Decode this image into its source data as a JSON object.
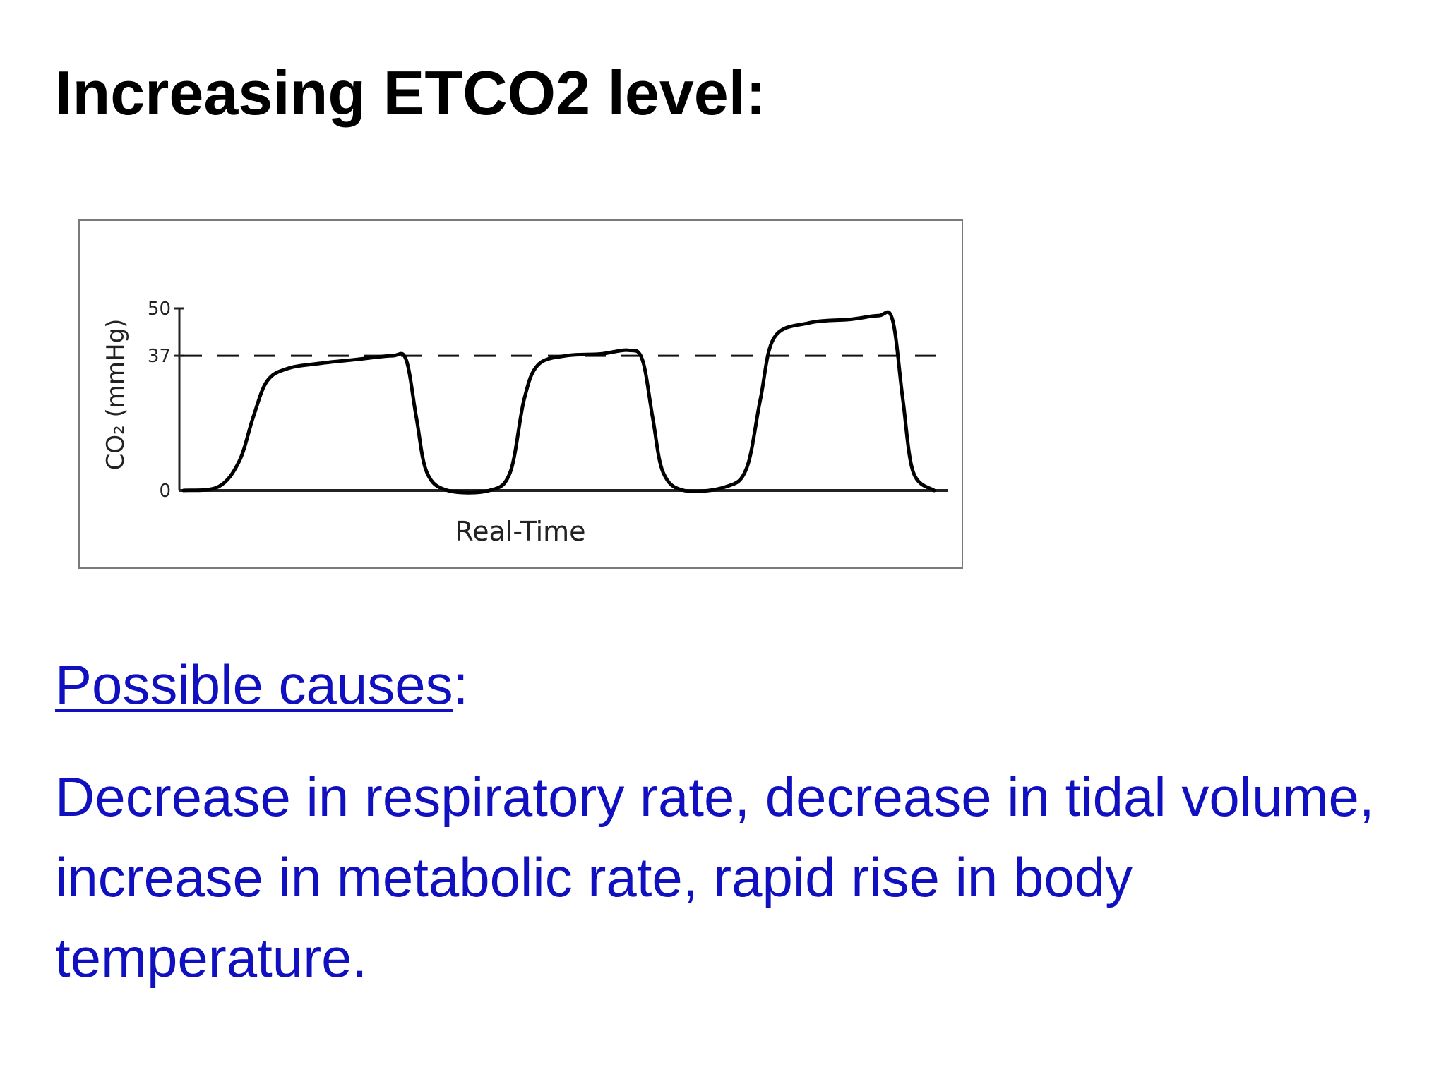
{
  "title": "Increasing ETCO2 level:",
  "chart_data": {
    "type": "line",
    "ylabel": "CO₂ (mmHg)",
    "xlabel": "Real-Time",
    "y_ticks": [
      "0",
      "37",
      "50"
    ],
    "reference_line": {
      "value": 37,
      "style": "dashed"
    },
    "ylim": [
      0,
      50
    ],
    "series": [
      {
        "values": [
          {
            "t": 0.0,
            "co2": 0
          },
          {
            "t": 0.5,
            "co2": 1
          },
          {
            "t": 0.8,
            "co2": 8
          },
          {
            "t": 1.0,
            "co2": 20
          },
          {
            "t": 1.2,
            "co2": 30
          },
          {
            "t": 1.5,
            "co2": 33.5
          },
          {
            "t": 2.0,
            "co2": 35
          },
          {
            "t": 2.5,
            "co2": 36
          },
          {
            "t": 3.0,
            "co2": 37
          },
          {
            "t": 3.2,
            "co2": 36
          },
          {
            "t": 3.35,
            "co2": 20
          },
          {
            "t": 3.5,
            "co2": 5
          },
          {
            "t": 3.8,
            "co2": 0
          },
          {
            "t": 4.4,
            "co2": 0
          },
          {
            "t": 4.7,
            "co2": 5
          },
          {
            "t": 4.9,
            "co2": 25
          },
          {
            "t": 5.1,
            "co2": 34.5
          },
          {
            "t": 5.5,
            "co2": 37
          },
          {
            "t": 6.0,
            "co2": 37.5
          },
          {
            "t": 6.4,
            "co2": 38.5
          },
          {
            "t": 6.6,
            "co2": 36
          },
          {
            "t": 6.75,
            "co2": 20
          },
          {
            "t": 6.9,
            "co2": 5
          },
          {
            "t": 7.2,
            "co2": 0
          },
          {
            "t": 7.8,
            "co2": 1
          },
          {
            "t": 8.1,
            "co2": 6
          },
          {
            "t": 8.3,
            "co2": 25
          },
          {
            "t": 8.5,
            "co2": 42
          },
          {
            "t": 9.0,
            "co2": 46
          },
          {
            "t": 9.6,
            "co2": 47
          },
          {
            "t": 10.0,
            "co2": 48
          },
          {
            "t": 10.2,
            "co2": 47
          },
          {
            "t": 10.35,
            "co2": 25
          },
          {
            "t": 10.5,
            "co2": 5
          },
          {
            "t": 10.8,
            "co2": 0
          }
        ]
      }
    ]
  },
  "causes": {
    "heading": "Possible causes",
    "colon": ":",
    "text": "Decrease in respiratory rate, decrease in tidal volume, increase in metabolic rate, rapid rise in body temperature."
  },
  "colors": {
    "text_blue": "#1010c0",
    "title": "#000000",
    "waveform": "#000000"
  }
}
